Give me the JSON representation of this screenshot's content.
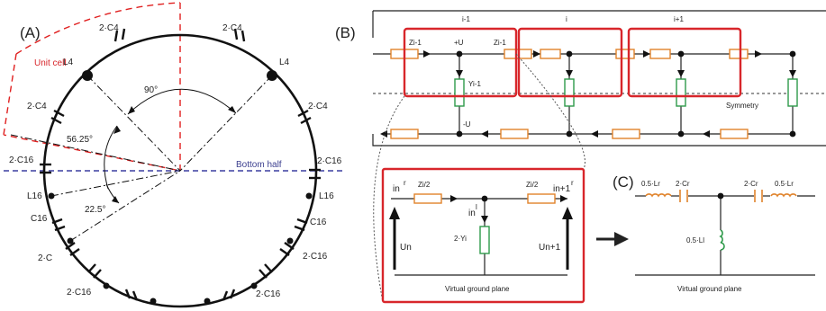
{
  "colors": {
    "ring": "#111111",
    "unit_cell": "#e02020",
    "bottom_half": "#3b3fa0",
    "impedance": "#e0832b",
    "admittance": "#2e9a4a",
    "box": "#d8262b"
  },
  "panel_a": {
    "letter": "(A)",
    "unit_cell": "Unit cell",
    "bottom_half": "Bottom half",
    "angle_90": "90°",
    "angle_5625": "56.25°",
    "angle_225": "22.5°",
    "cap_top_left": "2·C4",
    "cap_top_right": "2·C4",
    "ind_left": "L4",
    "ind_right": "L4",
    "cap_left": "2·C4",
    "cap_right": "2·C4",
    "cap_c16_left": "2·C16",
    "cap_c16_right": "2·C16",
    "l16_left": "L16",
    "l16_right": "L16",
    "c16_left": "C16",
    "c16_right": "C16",
    "cap_2c": "2·C",
    "cap_c16_r2": "2·C16",
    "cap_bl": "2·C16",
    "cap_br": "2·C16"
  },
  "panel_b": {
    "letter": "(B)",
    "cell_prev": "i-1",
    "cell_cur": "i",
    "cell_next": "i+1",
    "z_left": "Zi-1",
    "plus_u": "+U",
    "z_right": "Zi-1",
    "y_label": "Yi-1",
    "minus_u": "-U",
    "symmetry": "Symmetry",
    "i_n": "in",
    "i_n_sup": "r",
    "zi_half_1": "Zi/2",
    "zi_half_2": "Zi/2",
    "i_n1": "in+1",
    "i_n1_sup": "r",
    "i_l": "in",
    "i_l_sup": "l",
    "u_n": "Un",
    "u_n1": "Un+1",
    "y_half": "2·Yi",
    "ground": "Virtual ground plane"
  },
  "panel_c": {
    "letter": "(C)",
    "l_left": "0.5·Lr",
    "c_left": "2·Cr",
    "c_right": "2·Cr",
    "l_right": "0.5·Lr",
    "l_shunt": "0.5·Ll",
    "ground": "Virtual ground plane"
  }
}
